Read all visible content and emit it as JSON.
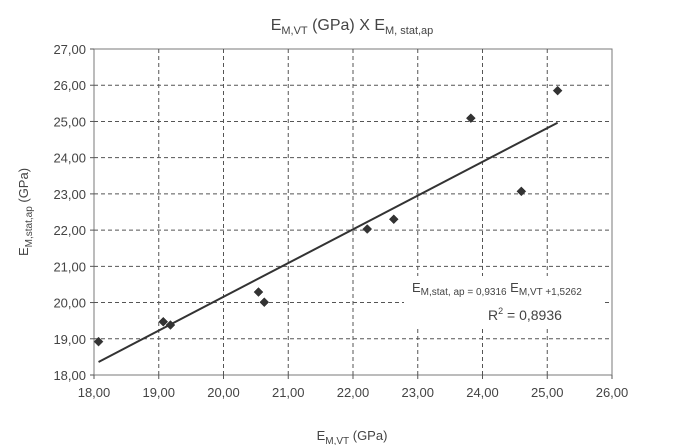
{
  "chart_data": {
    "type": "scatter",
    "title": {
      "main": "E",
      "main_sub": "M,VT",
      "mid": " (GPa) X E",
      "end_sub": "M, stat,ap"
    },
    "xlabel": {
      "main": "E",
      "sub": "M,VT",
      "unit": " (GPa)"
    },
    "ylabel": {
      "main": "E",
      "sub": "M,stat,ap",
      "unit": " (GPa)"
    },
    "xlim": [
      18,
      26
    ],
    "ylim": [
      18,
      27
    ],
    "x_ticks": [
      "18,00",
      "19,00",
      "20,00",
      "21,00",
      "22,00",
      "23,00",
      "24,00",
      "25,00",
      "26,00"
    ],
    "y_ticks": [
      "18,00",
      "19,00",
      "20,00",
      "21,00",
      "22,00",
      "23,00",
      "24,00",
      "25,00",
      "26,00",
      "27,00"
    ],
    "grid": true,
    "points": [
      {
        "x": 18.07,
        "y": 18.92
      },
      {
        "x": 19.07,
        "y": 19.47
      },
      {
        "x": 19.18,
        "y": 19.38
      },
      {
        "x": 20.54,
        "y": 20.29
      },
      {
        "x": 20.63,
        "y": 20.01
      },
      {
        "x": 22.22,
        "y": 22.03
      },
      {
        "x": 22.63,
        "y": 22.3
      },
      {
        "x": 23.82,
        "y": 25.09
      },
      {
        "x": 24.6,
        "y": 23.07
      },
      {
        "x": 25.16,
        "y": 25.85
      }
    ],
    "trendline": {
      "slope": 0.9316,
      "intercept": 1.5262,
      "x_start": 18.07,
      "x_end": 25.16
    },
    "equation": {
      "lhs": "E",
      "lhs_sub": "M,stat, ap = 0,9316",
      "rhs": " E",
      "rhs_sub": "M,VT +1,5262"
    },
    "r2": {
      "r": "R",
      "sup": "2",
      "rest": " = 0,8936"
    },
    "colors": {
      "marker": "#333333",
      "line": "#333333",
      "grid": "#555555",
      "text": "#444444"
    }
  }
}
